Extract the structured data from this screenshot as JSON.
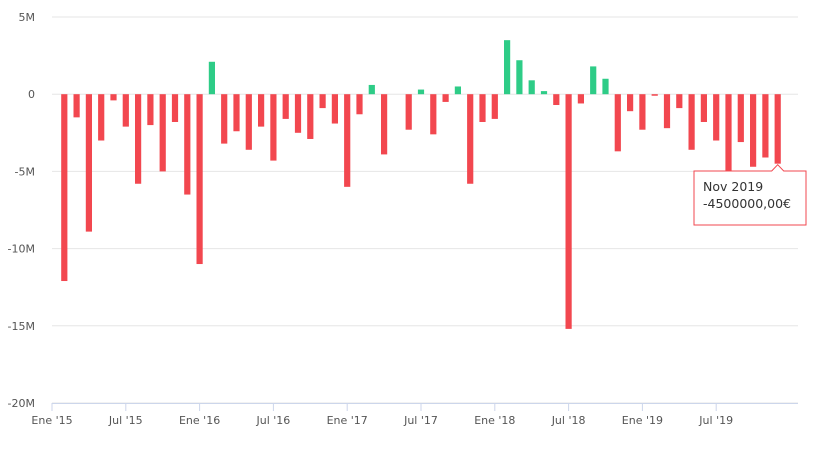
{
  "chart_data": {
    "type": "bar",
    "title": "",
    "xlabel": "",
    "ylabel": "",
    "ylim": [
      -20000000,
      5000000
    ],
    "y_ticks": [
      5000000,
      0,
      -5000000,
      -10000000,
      -15000000,
      -20000000
    ],
    "y_tick_labels": [
      "5M",
      "0",
      "-5M",
      "-10M",
      "-15M",
      "-20M"
    ],
    "x_tick_labels": [
      {
        "label": "Ene '15",
        "month_index": 0
      },
      {
        "label": "Jul '15",
        "month_index": 6
      },
      {
        "label": "Ene '16",
        "month_index": 12
      },
      {
        "label": "Jul '16",
        "month_index": 18
      },
      {
        "label": "Ene '17",
        "month_index": 24
      },
      {
        "label": "Jul '17",
        "month_index": 30
      },
      {
        "label": "Ene '18",
        "month_index": 36
      },
      {
        "label": "Jul '18",
        "month_index": 42
      },
      {
        "label": "Ene '19",
        "month_index": 48
      },
      {
        "label": "Jul '19",
        "month_index": 54
      }
    ],
    "grid": true,
    "positive_color": "#2ecc87",
    "negative_color": "#f2474f",
    "values": [
      -12100000,
      -1500000,
      -8900000,
      -3000000,
      -400000,
      -2100000,
      -5800000,
      -2000000,
      -5000000,
      -1800000,
      -6500000,
      -11000000,
      2100000,
      -3200000,
      -2400000,
      -3600000,
      -2100000,
      -4300000,
      -1600000,
      -2500000,
      -2900000,
      -900000,
      -1900000,
      -6000000,
      -1300000,
      600000,
      -3900000,
      0,
      -2300000,
      300000,
      -2600000,
      -500000,
      500000,
      -5800000,
      -1800000,
      -1600000,
      3500000,
      2200000,
      900000,
      200000,
      -700000,
      -15200000,
      -600000,
      1800000,
      1000000,
      -3700000,
      -1100000,
      -2300000,
      -100000,
      -2200000,
      -900000,
      -3600000,
      -1800000,
      -3000000,
      -5500000,
      -3100000,
      -4700000,
      -4100000,
      -4500000
    ],
    "tooltip": {
      "title": "Nov 2019",
      "value": "-4500000,00€",
      "month_index": 58
    }
  }
}
